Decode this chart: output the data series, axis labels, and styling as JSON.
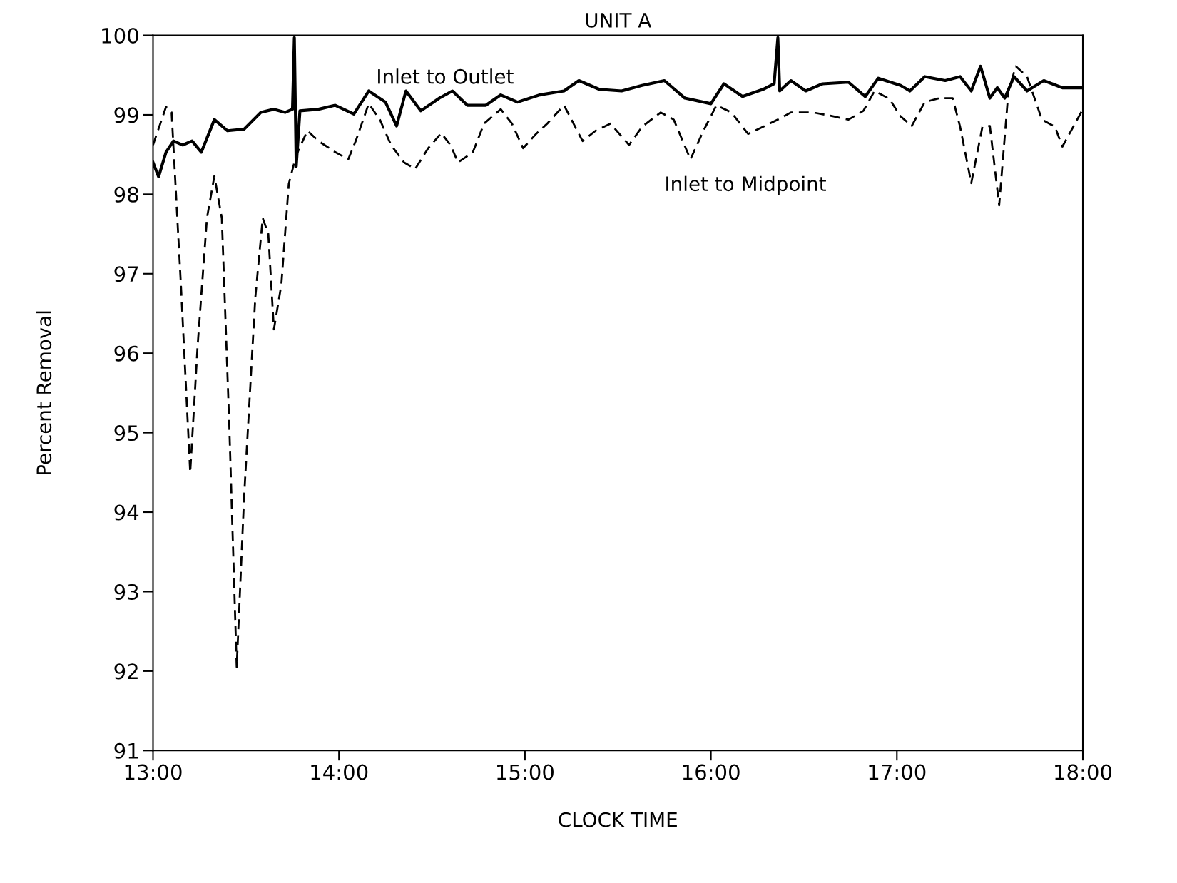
{
  "chart_data": {
    "type": "line",
    "title": "UNIT A",
    "xlabel": "CLOCK TIME",
    "ylabel": "Percent Removal",
    "xlim": [
      13,
      18
    ],
    "xticks": [
      {
        "value": 13,
        "label": "13:00"
      },
      {
        "value": 14,
        "label": "14:00"
      },
      {
        "value": 15,
        "label": "15:00"
      },
      {
        "value": 16,
        "label": "16:00"
      },
      {
        "value": 17,
        "label": "17:00"
      },
      {
        "value": 18,
        "label": "18:00"
      }
    ],
    "ylim": [
      91,
      100
    ],
    "yticks": [
      91,
      92,
      93,
      94,
      95,
      96,
      97,
      98,
      99,
      100
    ],
    "grid": false,
    "legend": false,
    "marker": "none",
    "series": [
      {
        "name": "Inlet to Outlet",
        "color": "#000000",
        "line_style": "solid",
        "x": [
          13.0,
          13.03,
          13.07,
          13.11,
          13.16,
          13.21,
          13.26,
          13.33,
          13.4,
          13.49,
          13.58,
          13.65,
          13.71,
          13.75,
          13.76,
          13.77,
          13.79,
          13.89,
          13.98,
          14.08,
          14.16,
          14.25,
          14.31,
          14.36,
          14.44,
          14.54,
          14.61,
          14.69,
          14.79,
          14.87,
          14.96,
          15.08,
          15.21,
          15.29,
          15.4,
          15.52,
          15.63,
          15.75,
          15.86,
          16.0,
          16.07,
          16.17,
          16.28,
          16.34,
          16.36,
          16.37,
          16.43,
          16.51,
          16.6,
          16.74,
          16.83,
          16.9,
          17.02,
          17.07,
          17.15,
          17.26,
          17.34,
          17.4,
          17.45,
          17.5,
          17.54,
          17.58,
          17.63,
          17.7,
          17.79,
          17.89,
          18.0
        ],
        "values": [
          98.4,
          98.22,
          98.53,
          98.67,
          98.62,
          98.67,
          98.53,
          98.94,
          98.8,
          98.82,
          99.03,
          99.07,
          99.03,
          99.07,
          99.97,
          98.35,
          99.05,
          99.07,
          99.12,
          99.01,
          99.3,
          99.16,
          98.86,
          99.3,
          99.05,
          99.21,
          99.3,
          99.12,
          99.12,
          99.25,
          99.16,
          99.25,
          99.3,
          99.43,
          99.32,
          99.3,
          99.37,
          99.43,
          99.21,
          99.14,
          99.39,
          99.23,
          99.32,
          99.39,
          99.97,
          99.3,
          99.43,
          99.3,
          99.39,
          99.41,
          99.23,
          99.46,
          99.37,
          99.3,
          99.48,
          99.43,
          99.48,
          99.3,
          99.61,
          99.21,
          99.34,
          99.21,
          99.48,
          99.3,
          99.43,
          99.34,
          99.34
        ]
      },
      {
        "name": "Inlet to Midpoint",
        "color": "#000000",
        "line_style": "dashed",
        "x": [
          13.0,
          13.07,
          13.1,
          13.15,
          13.2,
          13.24,
          13.29,
          13.33,
          13.37,
          13.41,
          13.45,
          13.49,
          13.55,
          13.59,
          13.62,
          13.65,
          13.69,
          13.73,
          13.77,
          13.83,
          13.89,
          13.98,
          14.05,
          14.09,
          14.16,
          14.22,
          14.28,
          14.35,
          14.41,
          14.48,
          14.55,
          14.6,
          14.64,
          14.72,
          14.78,
          14.87,
          14.93,
          14.99,
          15.06,
          15.12,
          15.21,
          15.31,
          15.38,
          15.46,
          15.56,
          15.63,
          15.73,
          15.8,
          15.89,
          15.96,
          16.03,
          16.11,
          16.2,
          16.28,
          16.36,
          16.43,
          16.55,
          16.66,
          16.74,
          16.82,
          16.88,
          16.96,
          17.02,
          17.08,
          17.15,
          17.23,
          17.3,
          17.34,
          17.4,
          17.46,
          17.5,
          17.55,
          17.6,
          17.64,
          17.7,
          17.78,
          17.85,
          17.89,
          18.0
        ],
        "values": [
          98.62,
          99.1,
          99.03,
          96.86,
          94.5,
          96.1,
          97.7,
          98.23,
          97.7,
          95.1,
          92.05,
          94.2,
          96.7,
          97.7,
          97.5,
          96.3,
          96.86,
          98.13,
          98.49,
          98.8,
          98.67,
          98.53,
          98.44,
          98.67,
          99.14,
          98.94,
          98.62,
          98.4,
          98.32,
          98.58,
          98.77,
          98.62,
          98.4,
          98.53,
          98.89,
          99.07,
          98.89,
          98.58,
          98.76,
          98.89,
          99.12,
          98.67,
          98.8,
          98.89,
          98.62,
          98.85,
          99.03,
          98.94,
          98.44,
          98.8,
          99.12,
          99.03,
          98.76,
          98.85,
          98.94,
          99.03,
          99.03,
          98.98,
          98.94,
          99.05,
          99.3,
          99.2,
          98.98,
          98.86,
          99.16,
          99.21,
          99.21,
          98.85,
          98.14,
          98.85,
          98.86,
          97.86,
          99.3,
          99.61,
          99.48,
          98.94,
          98.85,
          98.6,
          99.07
        ]
      }
    ]
  }
}
